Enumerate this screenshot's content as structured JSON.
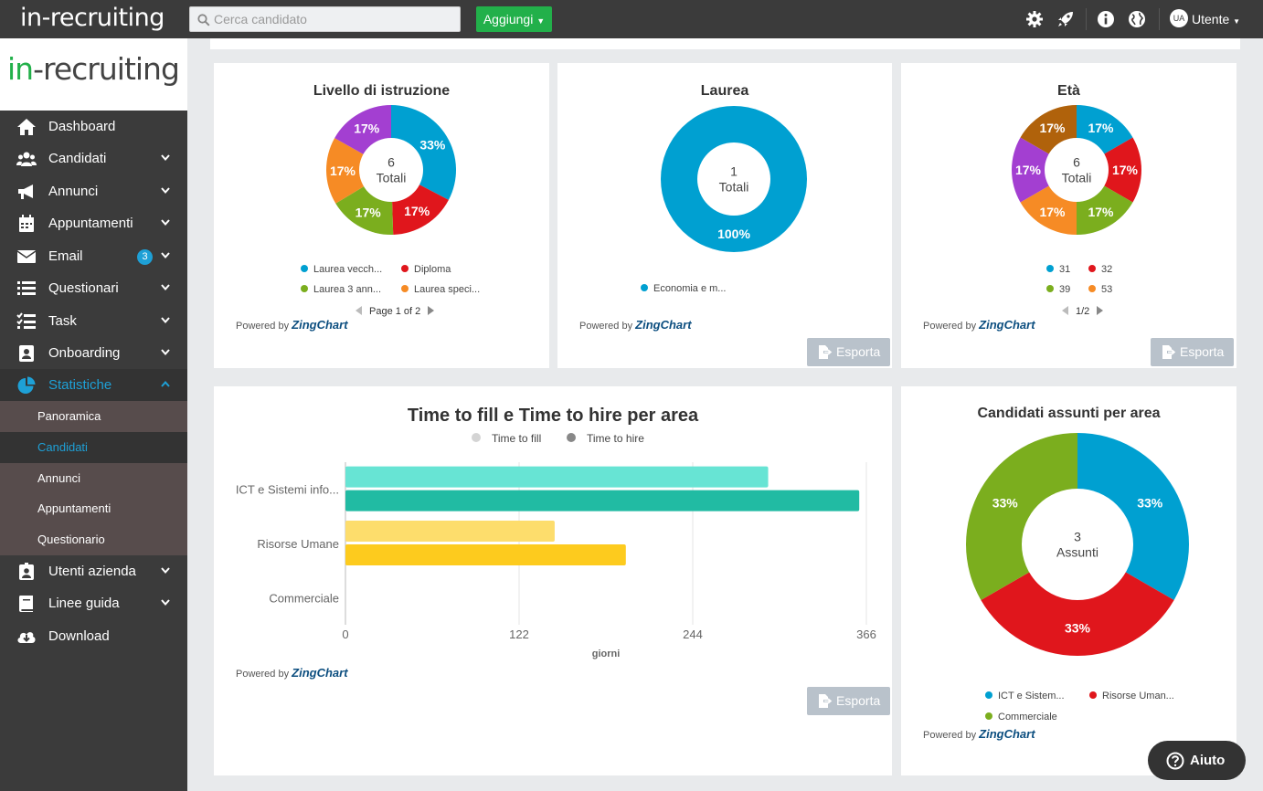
{
  "topbar": {
    "logo": "in-recruiting",
    "search_placeholder": "Cerca candidato",
    "add_label": "Aggiungi",
    "user_initials": "UA",
    "user_label": "Utente"
  },
  "sidebar": {
    "brand_prefix": "in",
    "brand_suffix": "-recruiting",
    "items": [
      {
        "label": "Dashboard",
        "icon": "home-icon"
      },
      {
        "label": "Candidati",
        "icon": "users-icon"
      },
      {
        "label": "Annunci",
        "icon": "megaphone-icon"
      },
      {
        "label": "Appuntamenti",
        "icon": "calendar-icon"
      },
      {
        "label": "Email",
        "icon": "envelope-icon",
        "badge": "3"
      },
      {
        "label": "Questionari",
        "icon": "list-icon"
      },
      {
        "label": "Task",
        "icon": "tasklist-icon"
      },
      {
        "label": "Onboarding",
        "icon": "id-card-icon"
      },
      {
        "label": "Statistiche",
        "icon": "pie-chart-icon"
      }
    ],
    "subitems": [
      "Panoramica",
      "Candidati",
      "Annunci",
      "Appuntamenti",
      "Questionario"
    ],
    "items_after": [
      {
        "label": "Utenti azienda",
        "icon": "user-badge-icon"
      },
      {
        "label": "Linee guida",
        "icon": "book-icon"
      },
      {
        "label": "Download",
        "icon": "cloud-download-icon"
      }
    ]
  },
  "common": {
    "powered_by": "Powered by",
    "zingchart": "ZingChart",
    "export_label": "Esporta",
    "help_label": "Aiuto"
  },
  "chart_data": [
    {
      "type": "pie",
      "title": "Livello di istruzione",
      "center_value": "6",
      "center_label": "Totali",
      "slices": [
        {
          "label": "Laurea vecch...",
          "value": 33,
          "color": "#00a0d1"
        },
        {
          "label": "Diploma",
          "value": 17,
          "color": "#e0161c"
        },
        {
          "label": "Laurea 3 ann...",
          "value": 17,
          "color": "#7bae1e"
        },
        {
          "label": "Laurea speci...",
          "value": 17,
          "color": "#f68b25"
        },
        {
          "label": "",
          "value": 17,
          "color": "#a33fd1"
        }
      ],
      "value_labels": [
        "33%",
        "17%",
        "17%",
        "17%",
        "17%"
      ],
      "pager": "Page 1 of 2"
    },
    {
      "type": "pie",
      "title": "Laurea",
      "center_value": "1",
      "center_label": "Totali",
      "slices": [
        {
          "label": "Economia e m...",
          "value": 100,
          "color": "#00a0d1"
        }
      ],
      "value_labels": [
        "100%"
      ]
    },
    {
      "type": "pie",
      "title": "Età",
      "center_value": "6",
      "center_label": "Totali",
      "slices": [
        {
          "label": "31",
          "value": 17,
          "color": "#00a0d1"
        },
        {
          "label": "32",
          "value": 17,
          "color": "#e0161c"
        },
        {
          "label": "39",
          "value": 17,
          "color": "#7bae1e"
        },
        {
          "label": "53",
          "value": 17,
          "color": "#f68b25"
        },
        {
          "label": "",
          "value": 17,
          "color": "#a33fd1"
        },
        {
          "label": "",
          "value": 17,
          "color": "#b0620b"
        }
      ],
      "value_labels": [
        "17%",
        "17%",
        "17%",
        "17%",
        "17%",
        "17%"
      ],
      "pager": "1/2"
    },
    {
      "type": "bar",
      "orientation": "horizontal",
      "title": "Time to fill e Time to hire per area",
      "categories": [
        "ICT e Sistemi info...",
        "Risorse Umane",
        "Commerciale"
      ],
      "series": [
        {
          "name": "Time to fill",
          "values": [
            297,
            147,
            0
          ],
          "colors": [
            "#67e4d4",
            "#fddd6c",
            "#cccccc"
          ],
          "legend_color": "#d4d4d4"
        },
        {
          "name": "Time to hire",
          "values": [
            361,
            197,
            0
          ],
          "colors": [
            "#21bba3",
            "#fdcb1e",
            "#aaaaaa"
          ],
          "legend_color": "#888888"
        }
      ],
      "xlim": [
        0,
        366
      ],
      "ticks": [
        "0",
        "122",
        "244",
        "366"
      ],
      "xlabel": "giorni",
      "grid": true
    },
    {
      "type": "pie",
      "title": "Candidati assunti per area",
      "center_value": "3",
      "center_label": "Assunti",
      "slices": [
        {
          "label": "ICT e Sistem...",
          "value": 33,
          "color": "#00a0d1"
        },
        {
          "label": "Risorse Uman...",
          "value": 33,
          "color": "#e0161c"
        },
        {
          "label": "Commerciale",
          "value": 33,
          "color": "#7bae1e"
        }
      ],
      "value_labels": [
        "33%",
        "33%",
        "33%"
      ]
    }
  ]
}
